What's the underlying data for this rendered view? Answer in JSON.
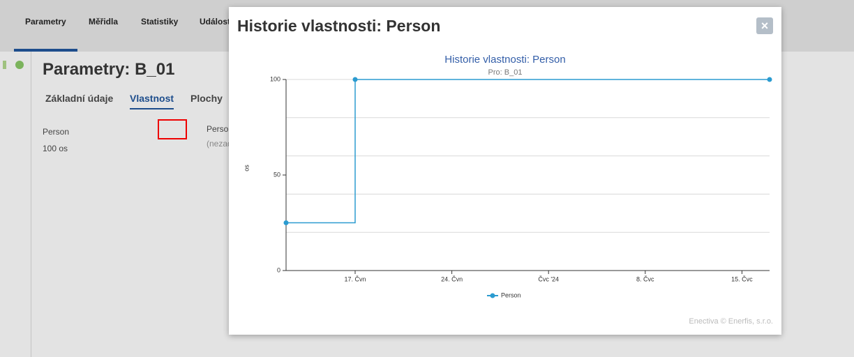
{
  "nav": [
    "Parametry",
    "Měřidla",
    "Statistiky",
    "Událost"
  ],
  "page_title": "Parametry: B_01",
  "tabs": [
    "Základní údaje",
    "Vlastnost",
    "Plochy"
  ],
  "property": {
    "name": "Person",
    "value": "100 os",
    "name2": "Perso",
    "note": "(nezad"
  },
  "modal": {
    "title": "Historie vlastnosti: Person",
    "credit": "Enectiva © Enerfis, s.r.o."
  },
  "chart_data": {
    "type": "line",
    "step": true,
    "title": "Historie vlastnosti: Person",
    "subtitle": "Pro: B_01",
    "y_label": "os",
    "x": [
      "2024-06-12",
      "2024-06-17",
      "2024-07-17"
    ],
    "series": [
      {
        "name": "Person",
        "color": "#2b9bd0",
        "values": [
          25,
          100,
          100
        ]
      }
    ],
    "xlim": [
      "2024-06-12",
      "2024-07-17"
    ],
    "xticks": [
      {
        "value": "2024-06-17",
        "label": "17. Čvn"
      },
      {
        "value": "2024-06-24",
        "label": "24. Čvn"
      },
      {
        "value": "2024-07-01",
        "label": "Čvc '24"
      },
      {
        "value": "2024-07-08",
        "label": "8. Čvc"
      },
      {
        "value": "2024-07-15",
        "label": "15. Čvc"
      }
    ],
    "ylim": [
      0,
      100
    ],
    "yticks": [
      0,
      50,
      100
    ],
    "ygrid": [
      20,
      40,
      60,
      80,
      100
    ]
  }
}
